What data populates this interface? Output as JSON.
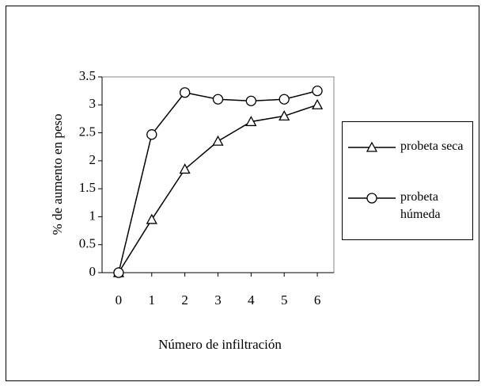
{
  "chart_data": {
    "type": "line",
    "x": [
      0,
      1,
      2,
      3,
      4,
      5,
      6
    ],
    "series": [
      {
        "name": "probeta seca",
        "color": "#000000",
        "marker": "triangle",
        "values": [
          0,
          0.95,
          1.85,
          2.35,
          2.7,
          2.8,
          3.0
        ]
      },
      {
        "name": "probeta húmeda",
        "color": "#000000",
        "marker": "circle",
        "values": [
          0,
          2.47,
          3.22,
          3.1,
          3.07,
          3.1,
          3.25
        ]
      }
    ],
    "xlabel": "Número de infiltración",
    "ylabel": "% de  aumento en peso",
    "xlim": [
      -0.5,
      6.5
    ],
    "xticks": [
      0,
      1,
      2,
      3,
      4,
      5,
      6
    ],
    "ylim": [
      0,
      3.5
    ],
    "yticks": [
      0,
      0.5,
      1,
      1.5,
      2,
      2.5,
      3,
      3.5
    ],
    "grid": false,
    "legend": "right"
  }
}
